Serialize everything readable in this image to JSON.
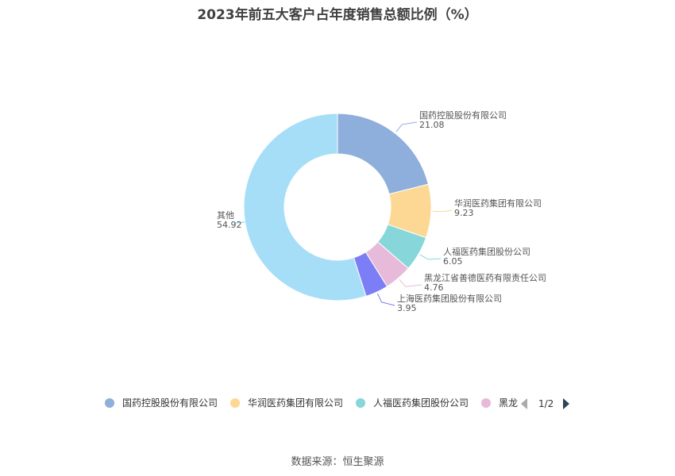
{
  "chart_data": {
    "type": "pie",
    "title": "2023年前五大客户占年度销售总额比例（%）",
    "slices": [
      {
        "label": "国药控股股份有限公司",
        "value": 21.08,
        "value_text": "21.08",
        "color": "#8eaedb"
      },
      {
        "label": "华润医药集团有限公司",
        "value": 9.23,
        "value_text": "9.23",
        "color": "#fdd894"
      },
      {
        "label": "人福医药集团股份公司",
        "value": 6.05,
        "value_text": "6.05",
        "color": "#86d6da"
      },
      {
        "label": "黑龙江省善德医药有限责任公司",
        "value": 4.76,
        "value_text": "4.76",
        "color": "#e8bad9"
      },
      {
        "label": "上海医药集团股份有限公司",
        "value": 3.95,
        "value_text": "3.95",
        "color": "#7b7ef4"
      },
      {
        "label": "其他",
        "value": 54.92,
        "value_text": "54.92",
        "color": "#a6def8"
      }
    ],
    "legend_visible": [
      "国药控股股份有限公司",
      "华润医药集团有限公司",
      "人福医药集团股份公司",
      "黑龙"
    ],
    "legend_placement": "bottom"
  },
  "legend": {
    "page": "1/2"
  },
  "source": "数据来源：恒生聚源"
}
